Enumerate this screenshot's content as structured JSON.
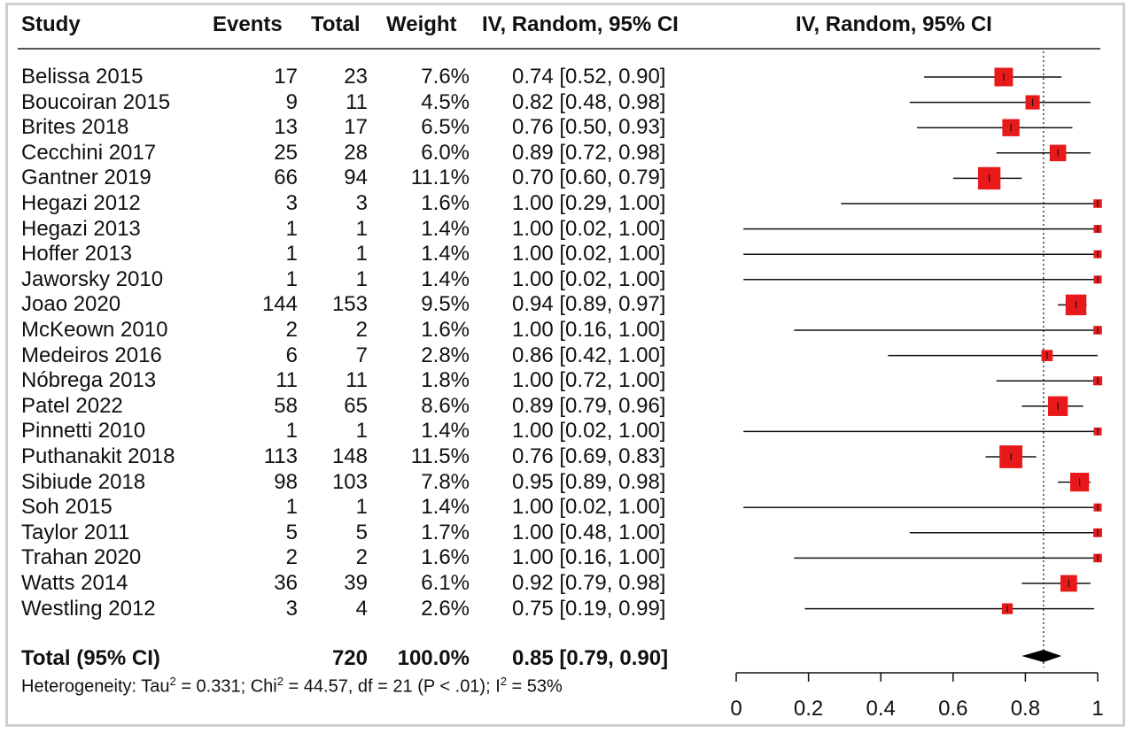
{
  "headers": {
    "study": "Study",
    "events": "Events",
    "total": "Total",
    "weight": "Weight",
    "ci": "IV, Random, 95% CI",
    "plot": "IV, Random, 95% CI"
  },
  "studies": [
    {
      "name": "Belissa 2015",
      "events": "17",
      "total": "23",
      "weight": "7.6%",
      "ci_text": "0.74 [0.52, 0.90]"
    },
    {
      "name": "Boucoiran 2015",
      "events": "9",
      "total": "11",
      "weight": "4.5%",
      "ci_text": "0.82 [0.48, 0.98]"
    },
    {
      "name": "Brites 2018",
      "events": "13",
      "total": "17",
      "weight": "6.5%",
      "ci_text": "0.76 [0.50, 0.93]"
    },
    {
      "name": "Cecchini 2017",
      "events": "25",
      "total": "28",
      "weight": "6.0%",
      "ci_text": "0.89 [0.72, 0.98]"
    },
    {
      "name": "Gantner 2019",
      "events": "66",
      "total": "94",
      "weight": "11.1%",
      "ci_text": "0.70 [0.60, 0.79]"
    },
    {
      "name": "Hegazi 2012",
      "events": "3",
      "total": "3",
      "weight": "1.6%",
      "ci_text": "1.00 [0.29, 1.00]"
    },
    {
      "name": "Hegazi 2013",
      "events": "1",
      "total": "1",
      "weight": "1.4%",
      "ci_text": "1.00 [0.02, 1.00]"
    },
    {
      "name": "Hoffer 2013",
      "events": "1",
      "total": "1",
      "weight": "1.4%",
      "ci_text": "1.00 [0.02, 1.00]"
    },
    {
      "name": "Jaworsky 2010",
      "events": "1",
      "total": "1",
      "weight": "1.4%",
      "ci_text": "1.00 [0.02, 1.00]"
    },
    {
      "name": "Joao 2020",
      "events": "144",
      "total": "153",
      "weight": "9.5%",
      "ci_text": "0.94 [0.89, 0.97]"
    },
    {
      "name": "McKeown 2010",
      "events": "2",
      "total": "2",
      "weight": "1.6%",
      "ci_text": "1.00 [0.16, 1.00]"
    },
    {
      "name": "Medeiros 2016",
      "events": "6",
      "total": "7",
      "weight": "2.8%",
      "ci_text": "0.86 [0.42, 1.00]"
    },
    {
      "name": "Nóbrega 2013",
      "events": "11",
      "total": "11",
      "weight": "1.8%",
      "ci_text": "1.00 [0.72, 1.00]"
    },
    {
      "name": "Patel 2022",
      "events": "58",
      "total": "65",
      "weight": "8.6%",
      "ci_text": "0.89 [0.79, 0.96]"
    },
    {
      "name": "Pinnetti 2010",
      "events": "1",
      "total": "1",
      "weight": "1.4%",
      "ci_text": "1.00 [0.02, 1.00]"
    },
    {
      "name": "Puthanakit 2018",
      "events": "113",
      "total": "148",
      "weight": "11.5%",
      "ci_text": "0.76 [0.69, 0.83]"
    },
    {
      "name": "Sibiude 2018",
      "events": "98",
      "total": "103",
      "weight": "7.8%",
      "ci_text": "0.95 [0.89, 0.98]"
    },
    {
      "name": "Soh 2015",
      "events": "1",
      "total": "1",
      "weight": "1.4%",
      "ci_text": "1.00 [0.02, 1.00]"
    },
    {
      "name": "Taylor 2011",
      "events": "5",
      "total": "5",
      "weight": "1.7%",
      "ci_text": "1.00 [0.48, 1.00]"
    },
    {
      "name": "Trahan 2020",
      "events": "2",
      "total": "2",
      "weight": "1.6%",
      "ci_text": "1.00 [0.16, 1.00]"
    },
    {
      "name": "Watts 2014",
      "events": "36",
      "total": "39",
      "weight": "6.1%",
      "ci_text": "0.92 [0.79, 0.98]"
    },
    {
      "name": "Westling 2012",
      "events": "3",
      "total": "4",
      "weight": "2.6%",
      "ci_text": "0.75 [0.19, 0.99]"
    }
  ],
  "total_row": {
    "label": "Total (95% CI)",
    "total": "720",
    "weight": "100.0%",
    "ci_text": "0.85 [0.79, 0.90]"
  },
  "heterogeneity": {
    "prefix": "Heterogeneity: Tau",
    "tau_sup": "2",
    "mid1": " = 0.331; Chi",
    "chi_sup": "2",
    "mid2": " = 44.57, df = 21 (P < .01); I",
    "i_sup": "2",
    "suffix": " = 53%"
  },
  "colors": {
    "box": "#e8191b",
    "line": "#111111",
    "diamond": "#000000",
    "ref_line": "#444444"
  },
  "chart_data": {
    "type": "forest",
    "title": "IV, Random, 95% CI",
    "xlabel": "",
    "ylabel": "",
    "xlim": [
      0,
      1
    ],
    "xticks": [
      0,
      0.2,
      0.4,
      0.6,
      0.8,
      1
    ],
    "xtick_labels": [
      "0",
      "0.2",
      "0.4",
      "0.6",
      "0.8",
      "1"
    ],
    "pooled_estimate": 0.85,
    "pooled_ci": [
      0.79,
      0.9
    ],
    "series": [
      {
        "name": "Belissa 2015",
        "est": 0.74,
        "lo": 0.52,
        "hi": 0.9,
        "weight": 7.6
      },
      {
        "name": "Boucoiran 2015",
        "est": 0.82,
        "lo": 0.48,
        "hi": 0.98,
        "weight": 4.5
      },
      {
        "name": "Brites 2018",
        "est": 0.76,
        "lo": 0.5,
        "hi": 0.93,
        "weight": 6.5
      },
      {
        "name": "Cecchini 2017",
        "est": 0.89,
        "lo": 0.72,
        "hi": 0.98,
        "weight": 6.0
      },
      {
        "name": "Gantner 2019",
        "est": 0.7,
        "lo": 0.6,
        "hi": 0.79,
        "weight": 11.1
      },
      {
        "name": "Hegazi 2012",
        "est": 1.0,
        "lo": 0.29,
        "hi": 1.0,
        "weight": 1.6
      },
      {
        "name": "Hegazi 2013",
        "est": 1.0,
        "lo": 0.02,
        "hi": 1.0,
        "weight": 1.4
      },
      {
        "name": "Hoffer 2013",
        "est": 1.0,
        "lo": 0.02,
        "hi": 1.0,
        "weight": 1.4
      },
      {
        "name": "Jaworsky 2010",
        "est": 1.0,
        "lo": 0.02,
        "hi": 1.0,
        "weight": 1.4
      },
      {
        "name": "Joao 2020",
        "est": 0.94,
        "lo": 0.89,
        "hi": 0.97,
        "weight": 9.5
      },
      {
        "name": "McKeown 2010",
        "est": 1.0,
        "lo": 0.16,
        "hi": 1.0,
        "weight": 1.6
      },
      {
        "name": "Medeiros 2016",
        "est": 0.86,
        "lo": 0.42,
        "hi": 1.0,
        "weight": 2.8
      },
      {
        "name": "Nóbrega 2013",
        "est": 1.0,
        "lo": 0.72,
        "hi": 1.0,
        "weight": 1.8
      },
      {
        "name": "Patel 2022",
        "est": 0.89,
        "lo": 0.79,
        "hi": 0.96,
        "weight": 8.6
      },
      {
        "name": "Pinnetti 2010",
        "est": 1.0,
        "lo": 0.02,
        "hi": 1.0,
        "weight": 1.4
      },
      {
        "name": "Puthanakit 2018",
        "est": 0.76,
        "lo": 0.69,
        "hi": 0.83,
        "weight": 11.5
      },
      {
        "name": "Sibiude 2018",
        "est": 0.95,
        "lo": 0.89,
        "hi": 0.98,
        "weight": 7.8
      },
      {
        "name": "Soh 2015",
        "est": 1.0,
        "lo": 0.02,
        "hi": 1.0,
        "weight": 1.4
      },
      {
        "name": "Taylor 2011",
        "est": 1.0,
        "lo": 0.48,
        "hi": 1.0,
        "weight": 1.7
      },
      {
        "name": "Trahan 2020",
        "est": 1.0,
        "lo": 0.16,
        "hi": 1.0,
        "weight": 1.6
      },
      {
        "name": "Watts 2014",
        "est": 0.92,
        "lo": 0.79,
        "hi": 0.98,
        "weight": 6.1
      },
      {
        "name": "Westling 2012",
        "est": 0.75,
        "lo": 0.19,
        "hi": 0.99,
        "weight": 2.6
      }
    ]
  }
}
